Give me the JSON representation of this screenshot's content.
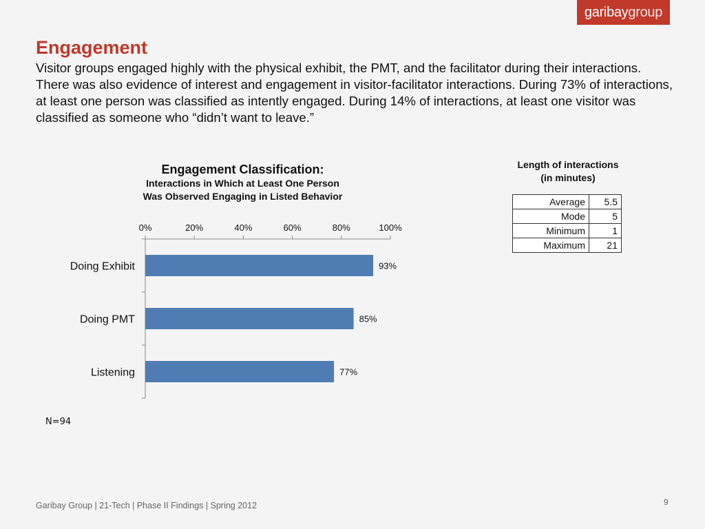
{
  "logo": {
    "bold": "garibay",
    "light": "group"
  },
  "slide": {
    "title": "Engagement",
    "intro": "Visitor groups engaged highly with the physical exhibit, the PMT, and the facilitator during their interactions. There was also evidence of interest and engagement in visitor-facilitator interactions. During 73% of interactions, at least one person was classified as intently engaged. During 14% of interactions, at least one visitor was classified as someone who “didn’t want to leave.”",
    "note": "N=94",
    "footer": "Garibay Group | 21-Tech | Phase II Findings | Spring 2012",
    "page_number": "9"
  },
  "chart_data": {
    "type": "bar",
    "orientation": "horizontal",
    "title": "Engagement Classification:",
    "subtitle_lines": [
      "Interactions in Which at Least One Person",
      "Was Observed Engaging in Listed Behavior"
    ],
    "categories": [
      "Doing Exhibit",
      "Doing PMT",
      "Listening"
    ],
    "values": [
      93,
      85,
      77
    ],
    "value_labels": [
      "93%",
      "85%",
      "77%"
    ],
    "xlim": [
      0,
      100
    ],
    "x_ticks": [
      "0%",
      "20%",
      "40%",
      "60%",
      "80%",
      "100%"
    ],
    "x_axis_position": "top",
    "bar_color": "#4f7db3",
    "grid": false,
    "legend": "none"
  },
  "interaction_table": {
    "title_lines": [
      "Length of interactions",
      "(in minutes)"
    ],
    "rows": [
      {
        "label": "Average",
        "value": "5.5"
      },
      {
        "label": "Mode",
        "value": "5"
      },
      {
        "label": "Minimum",
        "value": "1"
      },
      {
        "label": "Maximum",
        "value": "21"
      }
    ]
  },
  "colors": {
    "accent": "#c0392b",
    "text": "#111111",
    "footer": "#666666"
  }
}
